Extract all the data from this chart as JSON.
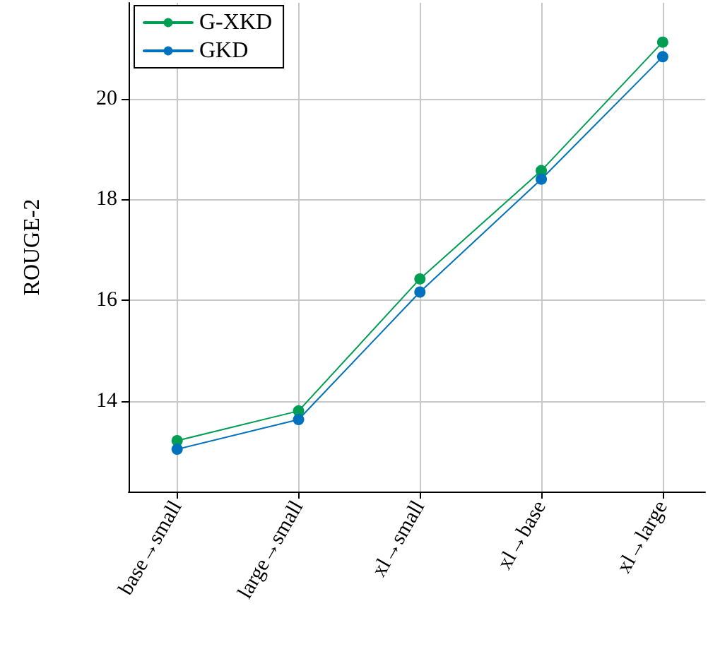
{
  "chart_data": {
    "type": "line",
    "ylabel": "ROUGE-2",
    "categories": [
      "base→small",
      "large→small",
      "xl→small",
      "xl→base",
      "xl→large"
    ],
    "series": [
      {
        "name": "G-XKD",
        "color": "#009e52",
        "values": [
          13.21,
          13.8,
          16.42,
          18.57,
          21.12
        ]
      },
      {
        "name": "GKD",
        "color": "#0072bd",
        "values": [
          13.04,
          13.63,
          16.16,
          18.4,
          20.83
        ]
      }
    ],
    "ylim": [
      12.2,
      21.9
    ],
    "yticks": [
      14,
      16,
      18,
      20
    ],
    "grid": true,
    "legend": "top left",
    "marker": "circle",
    "line_style": "solid"
  }
}
